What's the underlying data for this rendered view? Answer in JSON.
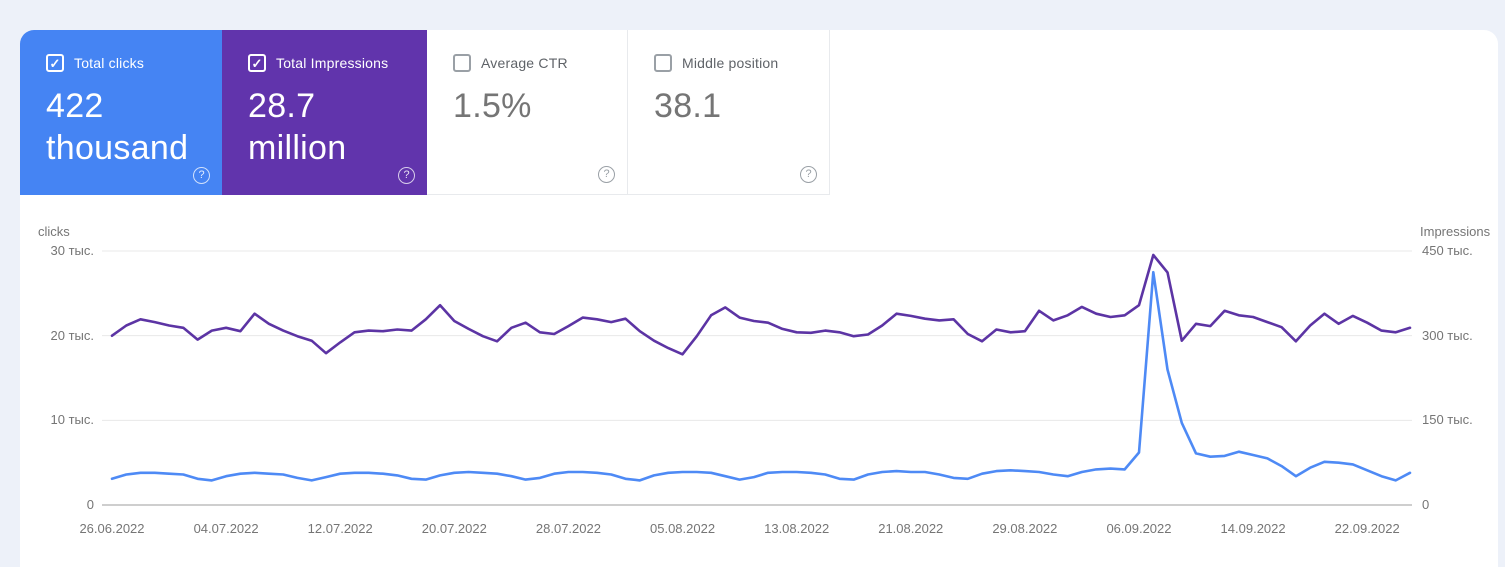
{
  "cards": [
    {
      "label": "Total clicks",
      "value_line1": "422",
      "value_line2": "thousand",
      "checked": true,
      "checkbox_glyph": "✓",
      "help_glyph": "?",
      "bg": "#4584f3",
      "text": "#ffffff"
    },
    {
      "label": "Total Impressions",
      "value_line1": "28.7",
      "value_line2": "million",
      "checked": true,
      "checkbox_glyph": "✓",
      "help_glyph": "?",
      "bg": "#6134ac",
      "text": "#ffffff"
    },
    {
      "label": "Average CTR",
      "value_line1": "1.5%",
      "value_line2": "",
      "checked": false,
      "checkbox_glyph": "",
      "help_glyph": "?",
      "bg": "#ffffff",
      "text": "#5f6368"
    },
    {
      "label": "Middle position",
      "value_line1": "38.1",
      "value_line2": "",
      "checked": false,
      "checkbox_glyph": "",
      "help_glyph": "?",
      "bg": "#ffffff",
      "text": "#5f6368"
    }
  ],
  "chart_data": {
    "type": "line",
    "title": "",
    "grid": true,
    "legend_position": "none",
    "left_axis": {
      "label": "clicks",
      "max": 30,
      "ticks": [
        "30 тыс.",
        "20 тыс.",
        "10 тыс.",
        "0"
      ]
    },
    "right_axis": {
      "label": "Impressions",
      "max": 450,
      "ticks": [
        "450 тыс.",
        "300 тыс.",
        "150 тыс.",
        "0"
      ]
    },
    "x_tick_labels": [
      "26.06.2022",
      "04.07.2022",
      "12.07.2022",
      "20.07.2022",
      "28.07.2022",
      "05.08.2022",
      "13.08.2022",
      "21.08.2022",
      "29.08.2022",
      "06.09.2022",
      "14.09.2022",
      "22.09.2022"
    ],
    "x_tick_day_indices": [
      0,
      8,
      16,
      24,
      32,
      40,
      48,
      56,
      64,
      72,
      80,
      88
    ],
    "series": [
      {
        "name": "clicks",
        "axis": "left",
        "color": "#4e8af5",
        "values": [
          3.1,
          3.6,
          3.8,
          3.8,
          3.7,
          3.6,
          3.1,
          2.9,
          3.4,
          3.7,
          3.8,
          3.7,
          3.6,
          3.2,
          2.9,
          3.3,
          3.7,
          3.8,
          3.8,
          3.7,
          3.5,
          3.1,
          3.0,
          3.5,
          3.8,
          3.9,
          3.8,
          3.7,
          3.4,
          3.0,
          3.2,
          3.7,
          3.9,
          3.9,
          3.8,
          3.6,
          3.1,
          2.9,
          3.5,
          3.8,
          3.9,
          3.9,
          3.8,
          3.4,
          3.0,
          3.3,
          3.8,
          3.9,
          3.9,
          3.8,
          3.6,
          3.1,
          3.0,
          3.6,
          3.9,
          4.0,
          3.9,
          3.9,
          3.6,
          3.2,
          3.1,
          3.7,
          4.0,
          4.1,
          4.0,
          3.9,
          3.6,
          3.4,
          3.9,
          4.2,
          4.3,
          4.2,
          6.2,
          27.5,
          16.0,
          9.7,
          6.1,
          5.7,
          5.8,
          6.3,
          5.9,
          5.5,
          4.6,
          3.4,
          4.4,
          5.1,
          5.0,
          4.8,
          4.1,
          3.4,
          2.9,
          3.8
        ]
      },
      {
        "name": "Impressions",
        "axis": "right",
        "color": "#5c34a4",
        "values": [
          300,
          318,
          329,
          324,
          318,
          314,
          293,
          309,
          314,
          308,
          339,
          321,
          309,
          299,
          291,
          269,
          288,
          306,
          309,
          308,
          311,
          309,
          329,
          354,
          326,
          312,
          299,
          290,
          314,
          323,
          306,
          303,
          317,
          332,
          329,
          324,
          330,
          308,
          291,
          278,
          267,
          299,
          336,
          350,
          332,
          326,
          323,
          312,
          306,
          305,
          309,
          306,
          299,
          302,
          318,
          339,
          335,
          330,
          327,
          329,
          303,
          290,
          311,
          306,
          308,
          344,
          327,
          336,
          351,
          339,
          333,
          336,
          354,
          443,
          412,
          291,
          321,
          317,
          344,
          336,
          333,
          324,
          315,
          290,
          318,
          339,
          321,
          335,
          323,
          309,
          306,
          314
        ]
      }
    ],
    "colors": {
      "gridline": "#e8e8e8",
      "baseline": "#9e9e9e",
      "axis_text": "#757575"
    }
  }
}
